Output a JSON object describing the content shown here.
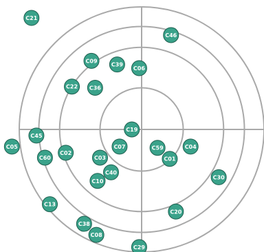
{
  "chart_data": {
    "type": "scatter",
    "title": "",
    "xlabel": "",
    "ylabel": "",
    "xlim": [
      -1.0,
      1.0
    ],
    "ylim": [
      -1.0,
      1.0
    ],
    "grid": true,
    "rings": [
      0.34,
      0.67,
      0.84,
      1.0
    ],
    "marker_color": "#3aa28a",
    "marker_stroke": "#1d5f4f",
    "axis_color": "#a9a9a9",
    "points": [
      {
        "label": "C21",
        "x": -0.9,
        "y": 0.91
      },
      {
        "label": "C46",
        "x": 0.24,
        "y": 0.77
      },
      {
        "label": "C09",
        "x": -0.41,
        "y": 0.56
      },
      {
        "label": "C39",
        "x": -0.2,
        "y": 0.53
      },
      {
        "label": "C06",
        "x": -0.02,
        "y": 0.5
      },
      {
        "label": "C22",
        "x": -0.57,
        "y": 0.35
      },
      {
        "label": "C36",
        "x": -0.38,
        "y": 0.34
      },
      {
        "label": "C19",
        "x": -0.08,
        "y": 0.0
      },
      {
        "label": "C05",
        "x": -1.06,
        "y": -0.14
      },
      {
        "label": "C45",
        "x": -0.86,
        "y": -0.05
      },
      {
        "label": "C60",
        "x": -0.79,
        "y": -0.23
      },
      {
        "label": "C02",
        "x": -0.62,
        "y": -0.19
      },
      {
        "label": "C07",
        "x": -0.18,
        "y": -0.14
      },
      {
        "label": "C03",
        "x": -0.34,
        "y": -0.23
      },
      {
        "label": "C40",
        "x": -0.25,
        "y": -0.35
      },
      {
        "label": "C10",
        "x": -0.36,
        "y": -0.42
      },
      {
        "label": "C59",
        "x": 0.13,
        "y": -0.15
      },
      {
        "label": "C01",
        "x": 0.23,
        "y": -0.24
      },
      {
        "label": "C04",
        "x": 0.4,
        "y": -0.14
      },
      {
        "label": "C30",
        "x": 0.63,
        "y": -0.39
      },
      {
        "label": "C13",
        "x": -0.75,
        "y": -0.61
      },
      {
        "label": "C20",
        "x": 0.28,
        "y": -0.67
      },
      {
        "label": "C38",
        "x": -0.47,
        "y": -0.77
      },
      {
        "label": "C08",
        "x": -0.37,
        "y": -0.86
      },
      {
        "label": "C29",
        "x": -0.02,
        "y": -0.96
      }
    ]
  }
}
